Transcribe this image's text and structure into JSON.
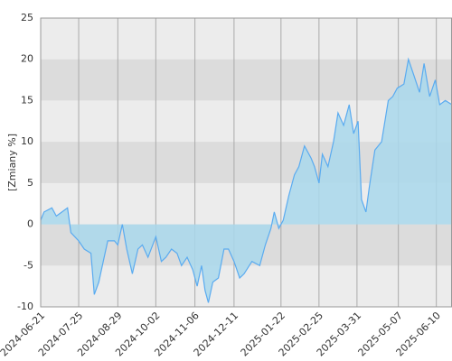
{
  "chart_data": {
    "type": "area",
    "y_label": "[Zmiany %]",
    "x": [
      "2024-06-21",
      "2024-06-24",
      "2024-07-01",
      "2024-07-05",
      "2024-07-10",
      "2024-07-15",
      "2024-07-18",
      "2024-07-25",
      "2024-07-30",
      "2024-08-05",
      "2024-08-08",
      "2024-08-12",
      "2024-08-16",
      "2024-08-20",
      "2024-08-26",
      "2024-08-29",
      "2024-09-02",
      "2024-09-06",
      "2024-09-11",
      "2024-09-16",
      "2024-09-20",
      "2024-09-25",
      "2024-10-02",
      "2024-10-07",
      "2024-10-11",
      "2024-10-16",
      "2024-10-21",
      "2024-10-25",
      "2024-10-30",
      "2024-11-04",
      "2024-11-08",
      "2024-11-12",
      "2024-11-15",
      "2024-11-18",
      "2024-11-22",
      "2024-11-27",
      "2024-12-02",
      "2024-12-06",
      "2024-12-11",
      "2024-12-16",
      "2024-12-20",
      "2024-12-27",
      "2025-01-03",
      "2025-01-08",
      "2025-01-13",
      "2025-01-16",
      "2025-01-20",
      "2025-01-24",
      "2025-01-29",
      "2025-02-03",
      "2025-02-07",
      "2025-02-12",
      "2025-02-18",
      "2025-02-21",
      "2025-02-25",
      "2025-02-28",
      "2025-03-05",
      "2025-03-10",
      "2025-03-14",
      "2025-03-19",
      "2025-03-24",
      "2025-03-28",
      "2025-04-01",
      "2025-04-04",
      "2025-04-08",
      "2025-04-11",
      "2025-04-16",
      "2025-04-22",
      "2025-04-28",
      "2025-05-02",
      "2025-05-06",
      "2025-05-12",
      "2025-05-16",
      "2025-05-21",
      "2025-05-26",
      "2025-05-30",
      "2025-06-04",
      "2025-06-09",
      "2025-06-13",
      "2025-06-18",
      "2025-06-24"
    ],
    "values": [
      0.5,
      1.5,
      2,
      1,
      1.5,
      2,
      -1,
      -2,
      -3,
      -3.5,
      -8.5,
      -7,
      -4.5,
      -2,
      -2,
      -2.5,
      0,
      -3,
      -6,
      -3,
      -2.5,
      -4,
      -1.5,
      -4.5,
      -4,
      -3,
      -3.5,
      -5,
      -4,
      -5.5,
      -7.5,
      -5,
      -8,
      -9.5,
      -7,
      -6.5,
      -3,
      -3,
      -4.5,
      -6.5,
      -6,
      -4.5,
      -5,
      -2.5,
      -0.5,
      1.5,
      -0.5,
      0.5,
      3.5,
      6,
      7,
      9.5,
      8,
      7,
      5,
      8.5,
      7,
      10,
      13.5,
      12,
      14.5,
      11,
      12.5,
      3,
      1.5,
      4.5,
      9,
      10,
      15,
      15.5,
      16.5,
      17,
      20,
      18,
      16,
      19.5,
      15.5,
      17.5,
      14.5,
      15,
      14.5
    ],
    "line_color": "#5aabf0",
    "fill_color": "#a9d8ec",
    "xlim": [
      "2024-06-21",
      "2025-06-24"
    ],
    "xticks": [
      "2024-06-21",
      "2024-07-25",
      "2024-08-29",
      "2024-10-02",
      "2024-11-06",
      "2024-12-11",
      "2025-01-22",
      "2025-02-25",
      "2025-03-31",
      "2025-05-07",
      "2025-06-10"
    ],
    "ylim": [
      -10,
      25
    ],
    "yticks": [
      -10,
      -5,
      0,
      5,
      10,
      15,
      20,
      25
    ],
    "grid": true
  }
}
